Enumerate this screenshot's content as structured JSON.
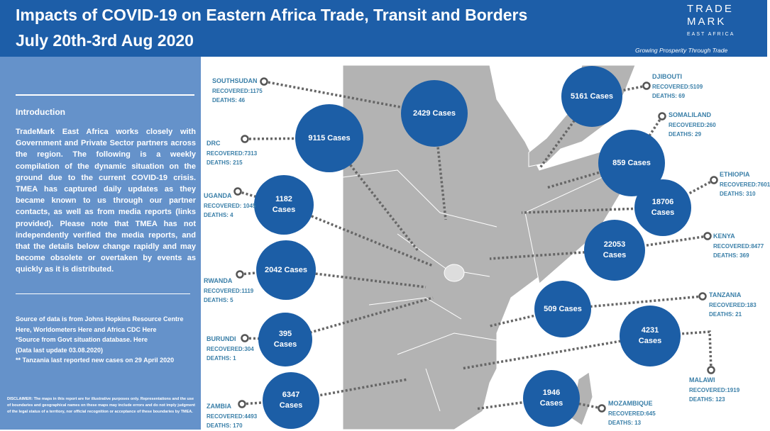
{
  "header": {
    "title_line1": "Impacts of COVID-19 on Eastern Africa Trade, Transit and Borders",
    "title_line2": "July 20th-3rd Aug 2020",
    "logo_line1": "TRADE",
    "logo_line2": "MARK",
    "logo_line3": "EAST AFRICA",
    "tagline": "Growing Prosperity Through Trade"
  },
  "sidebar": {
    "heading": "Introduction",
    "intro": "TradeMark East Africa works closely with Government and Private Sector partners across the region. The following is a weekly compilation of the dynamic situation on the ground due to the current COVID-19 crisis. TMEA has captured daily updates as they became known to us through our partner contacts, as well as from media reports (links provided). Please note that TMEA has not independently verified the media reports, and that the details below change rapidly and may become obsolete or overtaken by events as quickly as it is distributed.",
    "sources": [
      "Source of data is from Johns Hopkins Resource Centre Here, Worldometers Here and Africa CDC Here",
      "*Source from Govt situation database. Here",
      "(Data last update 03.08.2020)",
      "** Tanzania last reported new cases on 29 April 2020"
    ],
    "disclaimer": "DISCLAIMER: The maps in this report are for illustrative purposes only. Representations and the use of boundaries and geographical names on these maps may include errors and do not imply judgment of the legal status of a territory, nor official recognition or acceptance of these boundaries by TMEA."
  },
  "countries": [
    {
      "name": "SOUTHSUDAN",
      "cases": "2429 Cases",
      "recovered": "RECOVERED:1175",
      "deaths": "DEATHS: 46"
    },
    {
      "name": "DRC",
      "cases": "9115 Cases",
      "recovered": "RECOVERED:7313",
      "deaths": "DEATHS: 215"
    },
    {
      "name": "UGANDA",
      "cases": "1182 Cases",
      "recovered": "RECOVERED: 1045",
      "deaths": "DEATHS: 4"
    },
    {
      "name": "RWANDA",
      "cases": "2042 Cases",
      "recovered": "RECOVERED:1119",
      "deaths": "DEATHS: 5"
    },
    {
      "name": "BURUNDI",
      "cases": "395 Cases",
      "recovered": "RECOVERED:304",
      "deaths": "DEATHS: 1"
    },
    {
      "name": "ZAMBIA",
      "cases": "6347 Cases",
      "recovered": "RECOVERED:4493",
      "deaths": "DEATHS: 170"
    },
    {
      "name": "DJIBOUTI",
      "cases": "5161 Cases",
      "recovered": "RECOVERED:5109",
      "deaths": "DEATHS: 69"
    },
    {
      "name": "SOMALILAND",
      "cases": "859 Cases",
      "recovered": "RECOVERED:260",
      "deaths": "DEATHS: 29"
    },
    {
      "name": "ETHIOPIA",
      "cases": "18706 Cases",
      "recovered": "RECOVERED:7601",
      "deaths": "DEATHS: 310"
    },
    {
      "name": "KENYA",
      "cases": "22053 Cases",
      "recovered": "RECOVERED:8477",
      "deaths": "DEATHS: 369"
    },
    {
      "name": "TANZANIA",
      "cases": "509 Cases",
      "recovered": "RECOVERED:183",
      "deaths": "DEATHS: 21"
    },
    {
      "name": "MALAWI",
      "cases": "4231 Cases",
      "recovered": "RECOVERED:1919",
      "deaths": "DEATHS: 123"
    },
    {
      "name": "MOZAMBIQUE",
      "cases": "1946 Cases",
      "recovered": "RECOVERED:645",
      "deaths": "DEATHS: 13"
    }
  ]
}
